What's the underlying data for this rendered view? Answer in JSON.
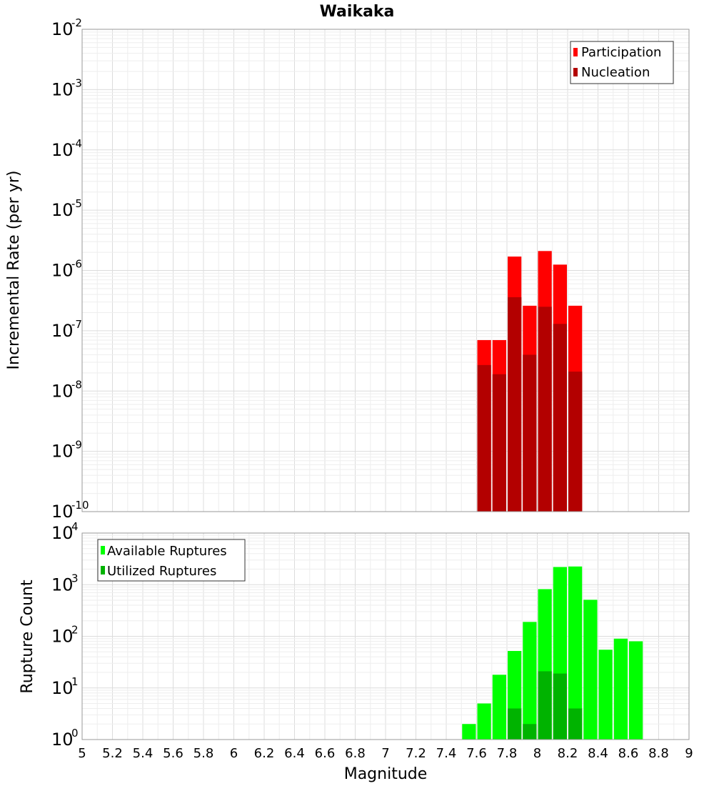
{
  "chart_data": [
    {
      "type": "bar",
      "title": "Waikaka",
      "ylabel": "Incremental Rate (per yr)",
      "xlabel": "",
      "yscale": "log",
      "ylim_exp": [
        -10,
        -2
      ],
      "xlim": [
        5,
        9
      ],
      "bin_width": 0.1,
      "legend_position": "top-right",
      "series": [
        {
          "name": "Participation",
          "color": "#ff0000",
          "x": [
            7.65,
            7.75,
            7.85,
            7.95,
            8.05,
            8.15,
            8.25
          ],
          "values": [
            7e-08,
            7e-08,
            1.7e-06,
            2.6e-07,
            2.1e-06,
            1.25e-06,
            2.6e-07
          ]
        },
        {
          "name": "Nucleation",
          "color": "#b30000",
          "x": [
            7.65,
            7.75,
            7.85,
            7.95,
            8.05,
            8.15,
            8.25
          ],
          "values": [
            2.7e-08,
            1.9e-08,
            3.6e-07,
            4e-08,
            2.5e-07,
            1.3e-07,
            2.1e-08
          ]
        }
      ]
    },
    {
      "type": "bar",
      "title": "",
      "ylabel": "Rupture Count",
      "xlabel": "Magnitude",
      "yscale": "log",
      "ylim_exp": [
        0,
        4
      ],
      "xlim": [
        5,
        9
      ],
      "bin_width": 0.1,
      "legend_position": "top-left",
      "series": [
        {
          "name": "Available Ruptures",
          "color": "#00ff00",
          "x": [
            7.15,
            7.55,
            7.65,
            7.75,
            7.85,
            7.95,
            8.05,
            8.15,
            8.25,
            8.35,
            8.45,
            8.55,
            8.65
          ],
          "values": [
            1,
            2,
            5,
            18,
            52,
            190,
            820,
            2200,
            2250,
            510,
            55,
            90,
            80
          ]
        },
        {
          "name": "Utilized Ruptures",
          "color": "#00b300",
          "x": [
            7.65,
            7.75,
            7.85,
            7.95,
            8.05,
            8.15,
            8.25,
            8.65
          ],
          "values": [
            1,
            1,
            4,
            2,
            21,
            19,
            4,
            1
          ]
        }
      ]
    }
  ],
  "x_ticks": [
    "5",
    "5.2",
    "5.4",
    "5.6",
    "5.8",
    "6",
    "6.2",
    "6.4",
    "6.6",
    "6.8",
    "7",
    "7.2",
    "7.4",
    "7.6",
    "7.8",
    "8",
    "8.2",
    "8.4",
    "8.6",
    "8.8",
    "9"
  ],
  "top_y_ticks": [
    {
      "base": "10",
      "exp": "-2"
    },
    {
      "base": "10",
      "exp": "-3"
    },
    {
      "base": "10",
      "exp": "-4"
    },
    {
      "base": "10",
      "exp": "-5"
    },
    {
      "base": "10",
      "exp": "-6"
    },
    {
      "base": "10",
      "exp": "-7"
    },
    {
      "base": "10",
      "exp": "-8"
    },
    {
      "base": "10",
      "exp": "-9"
    },
    {
      "base": "10",
      "exp": "-10"
    }
  ],
  "bottom_y_ticks": [
    {
      "base": "10",
      "exp": "4"
    },
    {
      "base": "10",
      "exp": "3"
    },
    {
      "base": "10",
      "exp": "2"
    },
    {
      "base": "10",
      "exp": "1"
    },
    {
      "base": "10",
      "exp": "0"
    }
  ]
}
